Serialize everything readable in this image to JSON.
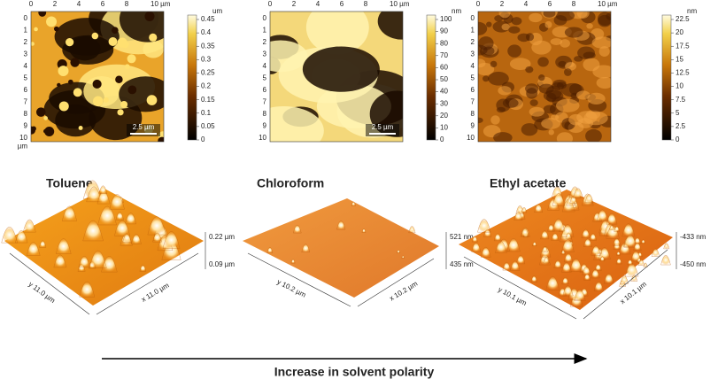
{
  "panels": [
    {
      "map": {
        "x_ticks": [
          "0",
          "2",
          "4",
          "6",
          "8",
          "10 µm"
        ],
        "y_ticks": [
          "0",
          "1",
          "2",
          "3",
          "4",
          "5",
          "6",
          "7",
          "8",
          "9",
          "10"
        ],
        "y_unit": "µm",
        "colorbar_unit": "um",
        "colorbar_ticks": [
          "0",
          "0.05",
          "0.1",
          "0.15",
          "0.2",
          "0.25",
          "0.3",
          "0.35",
          "0.4",
          "0.45"
        ],
        "scale_bar": "2.5 µm"
      },
      "solvent": "Toluene",
      "surface": {
        "z_top": "0.22 µm",
        "z_bottom": "0.09 µm",
        "y_axis": "y 11.0 µm",
        "x_axis": "x 11.0 µm"
      }
    },
    {
      "map": {
        "x_ticks": [
          "0",
          "2",
          "4",
          "6",
          "8",
          "10 µm"
        ],
        "y_ticks": [
          "0",
          "1",
          "2",
          "3",
          "4",
          "5",
          "6",
          "7",
          "8",
          "9",
          "10"
        ],
        "colorbar_unit": "nm",
        "colorbar_ticks": [
          "0",
          "10",
          "20",
          "30",
          "40",
          "50",
          "60",
          "70",
          "80",
          "90",
          "100"
        ],
        "scale_bar": "2.5 µm"
      },
      "solvent": "Chloroform",
      "surface": {
        "z_top": "521 nm",
        "z_bottom": "435 nm",
        "y_axis": "y 10.2 µm",
        "x_axis": "x 10.2 µm"
      }
    },
    {
      "map": {
        "x_ticks": [
          "0",
          "2",
          "4",
          "6",
          "8",
          "10 µm"
        ],
        "y_ticks": [
          "0",
          "1",
          "2",
          "3",
          "4",
          "5",
          "6",
          "7",
          "8",
          "9",
          "10"
        ],
        "colorbar_unit": "nm",
        "colorbar_ticks": [
          "0",
          "2.5",
          "5",
          "7.5",
          "10",
          "12.5",
          "15",
          "17.5",
          "20",
          "22.5"
        ]
      },
      "solvent": "Ethyl acetate",
      "surface": {
        "z_top": "-433 nm",
        "z_bottom": "-450 nm",
        "y_axis": "y 10.1 µm",
        "x_axis": "x 10.1 µm"
      }
    }
  ],
  "arrow_label": "Increase in solvent polarity"
}
